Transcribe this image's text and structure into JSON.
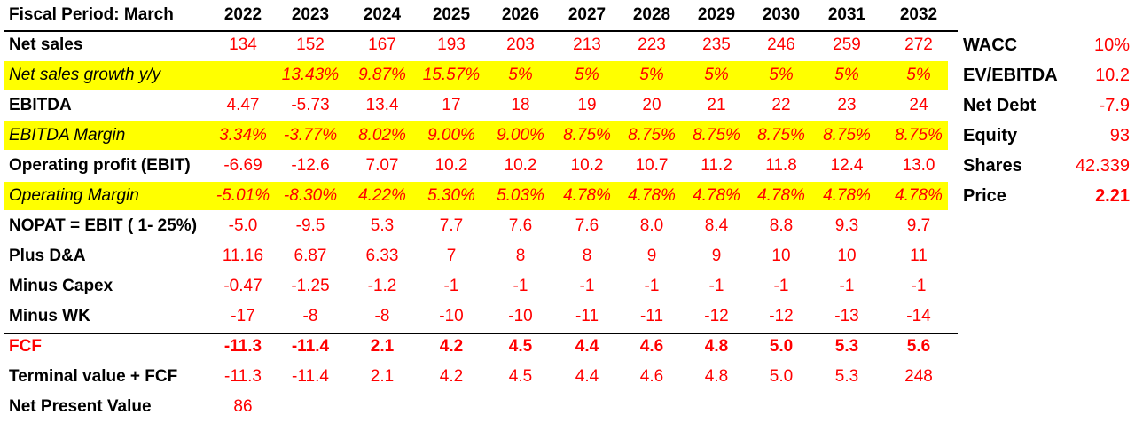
{
  "header": {
    "label": "Fiscal Period: March",
    "years": [
      "2022",
      "2023",
      "2024",
      "2025",
      "2026",
      "2027",
      "2028",
      "2029",
      "2030",
      "2031",
      "2032"
    ]
  },
  "rows": [
    {
      "label": "Net sales",
      "style": "normal",
      "values": [
        "134",
        "152",
        "167",
        "193",
        "203",
        "213",
        "223",
        "235",
        "246",
        "259",
        "272"
      ]
    },
    {
      "label": "Net sales growth y/y",
      "style": "highlight",
      "values": [
        "",
        "13.43%",
        "9.87%",
        "15.57%",
        "5%",
        "5%",
        "5%",
        "5%",
        "5%",
        "5%",
        "5%"
      ]
    },
    {
      "label": "EBITDA",
      "style": "normal",
      "values": [
        "4.47",
        "-5.73",
        "13.4",
        "17",
        "18",
        "19",
        "20",
        "21",
        "22",
        "23",
        "24"
      ]
    },
    {
      "label": "EBITDA Margin",
      "style": "highlight",
      "values": [
        "3.34%",
        "-3.77%",
        "8.02%",
        "9.00%",
        "9.00%",
        "8.75%",
        "8.75%",
        "8.75%",
        "8.75%",
        "8.75%",
        "8.75%"
      ]
    },
    {
      "label": "Operating profit (EBIT)",
      "style": "normal",
      "values": [
        "-6.69",
        "-12.6",
        "7.07",
        "10.2",
        "10.2",
        "10.2",
        "10.7",
        "11.2",
        "11.8",
        "12.4",
        "13.0"
      ]
    },
    {
      "label": "Operating Margin",
      "style": "highlight",
      "values": [
        "-5.01%",
        "-8.30%",
        "4.22%",
        "5.30%",
        "5.03%",
        "4.78%",
        "4.78%",
        "4.78%",
        "4.78%",
        "4.78%",
        "4.78%"
      ]
    },
    {
      "label": "NOPAT = EBIT ( 1- 25%)",
      "style": "normal",
      "values": [
        "-5.0",
        "-9.5",
        "5.3",
        "7.7",
        "7.6",
        "7.6",
        "8.0",
        "8.4",
        "8.8",
        "9.3",
        "9.7"
      ]
    },
    {
      "label": "Plus D&A",
      "style": "normal",
      "values": [
        "11.16",
        "6.87",
        "6.33",
        "7",
        "8",
        "8",
        "9",
        "9",
        "10",
        "10",
        "11"
      ]
    },
    {
      "label": "Minus Capex",
      "style": "normal",
      "values": [
        "-0.47",
        "-1.25",
        "-1.2",
        "-1",
        "-1",
        "-1",
        "-1",
        "-1",
        "-1",
        "-1",
        "-1"
      ]
    },
    {
      "label": "Minus WK",
      "style": "normal",
      "values": [
        "-17",
        "-8",
        "-8",
        "-10",
        "-10",
        "-11",
        "-11",
        "-12",
        "-12",
        "-13",
        "-14"
      ]
    },
    {
      "label": "FCF",
      "style": "fcf",
      "values": [
        "-11.3",
        "-11.4",
        "2.1",
        "4.2",
        "4.5",
        "4.4",
        "4.6",
        "4.8",
        "5.0",
        "5.3",
        "5.6"
      ]
    },
    {
      "label": "Terminal value + FCF",
      "style": "normal",
      "values": [
        "-11.3",
        "-11.4",
        "2.1",
        "4.2",
        "4.5",
        "4.4",
        "4.6",
        "4.8",
        "5.0",
        "5.3",
        "248"
      ]
    },
    {
      "label": "Net Present Value",
      "style": "normal",
      "values": [
        "86",
        "",
        "",
        "",
        "",
        "",
        "",
        "",
        "",
        "",
        ""
      ]
    }
  ],
  "side": [
    {
      "label": "WACC",
      "value": "10%",
      "bold": false
    },
    {
      "label": "EV/EBITDA",
      "value": "10.2",
      "bold": false
    },
    {
      "label": "Net Debt",
      "value": "-7.9",
      "bold": false
    },
    {
      "label": "Equity",
      "value": "93",
      "bold": false
    },
    {
      "label": "Shares",
      "value": "42.339",
      "bold": false
    },
    {
      "label": "Price",
      "value": "2.21",
      "bold": true
    }
  ],
  "colors": {
    "highlight": "#ffff00",
    "value": "#ff0000",
    "label": "#000000"
  }
}
